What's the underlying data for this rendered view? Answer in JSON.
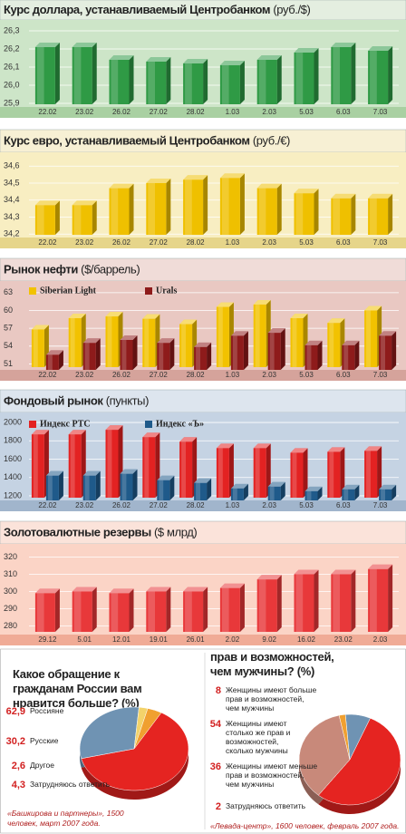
{
  "chart_data": [
    {
      "type": "bar",
      "title": "Курс доллара, устанавливаемый Центробанком",
      "unit": "(руб./$)",
      "categories": [
        "22.02",
        "23.02",
        "26.02",
        "27.02",
        "28.02",
        "1.03",
        "2.03",
        "5.03",
        "6.03",
        "7.03"
      ],
      "values": [
        26.21,
        26.21,
        26.14,
        26.13,
        26.12,
        26.11,
        26.14,
        26.18,
        26.21,
        26.19
      ],
      "color": "#2f9a45",
      "ylim": [
        25.88,
        26.33
      ],
      "yticks": [
        {
          "value": 25.9,
          "label": "25,9"
        },
        {
          "value": 26.0,
          "label": "26,0"
        },
        {
          "value": 26.1,
          "label": "26,1"
        },
        {
          "value": 26.2,
          "label": "26,2"
        },
        {
          "value": 26.3,
          "label": "26,3"
        }
      ],
      "grid": true
    },
    {
      "type": "bar",
      "title": "Курс евро, устанавливаемый Центробанком",
      "unit": "(руб./€)",
      "categories": [
        "22.02",
        "23.02",
        "26.02",
        "27.02",
        "28.02",
        "1.03",
        "2.03",
        "5.03",
        "6.03",
        "7.03"
      ],
      "values": [
        34.37,
        34.37,
        34.47,
        34.5,
        34.52,
        34.53,
        34.47,
        34.44,
        34.41,
        34.41
      ],
      "color": "#efc000",
      "ylim": [
        34.18,
        34.66
      ],
      "yticks": [
        {
          "value": 34.2,
          "label": "34,2"
        },
        {
          "value": 34.3,
          "label": "34,3"
        },
        {
          "value": 34.4,
          "label": "34,4"
        },
        {
          "value": 34.5,
          "label": "34,5"
        },
        {
          "value": 34.6,
          "label": "34,6"
        }
      ],
      "grid": true
    },
    {
      "type": "bar",
      "title": "Рынок нефти",
      "unit": "($/баррель)",
      "categories": [
        "22.02",
        "23.02",
        "26.02",
        "27.02",
        "28.02",
        "1.03",
        "2.03",
        "5.03",
        "6.03",
        "7.03"
      ],
      "series": [
        {
          "name": "Siberian Light",
          "color": "#f2c200",
          "values": [
            56.8,
            58.7,
            59.0,
            58.6,
            57.7,
            60.6,
            61.0,
            58.7,
            57.9,
            60.0
          ]
        },
        {
          "name": "Urals",
          "color": "#8e1b1b",
          "values": [
            53.0,
            55.0,
            55.5,
            55.0,
            54.3,
            56.2,
            56.7,
            54.6,
            54.6,
            56.2
          ]
        }
      ],
      "ylim": [
        50,
        64.2
      ],
      "yticks": [
        51,
        54,
        57,
        60,
        63
      ],
      "grid": true
    },
    {
      "type": "bar",
      "title": "Фондовый рынок",
      "unit": "(пункты)",
      "categories": [
        "22.02",
        "23.02",
        "26.02",
        "27.02",
        "28.02",
        "1.03",
        "2.03",
        "5.03",
        "6.03",
        "7.03"
      ],
      "series": [
        {
          "name": "Индекс РТС",
          "color": "#e32222",
          "values": [
            1870,
            1870,
            1920,
            1840,
            1790,
            1720,
            1720,
            1670,
            1680,
            1690
          ]
        },
        {
          "name": "Индекс «Ъ»",
          "color": "#1f5a8a",
          "values": [
            1450,
            1450,
            1470,
            1400,
            1370,
            1310,
            1330,
            1280,
            1300,
            1300
          ]
        }
      ],
      "ylim": [
        1150,
        2040
      ],
      "yticks": [
        1200,
        1400,
        1600,
        1800,
        2000
      ],
      "grid": true
    },
    {
      "type": "bar",
      "title": "Золотовалютные резервы",
      "unit": "($ млрд)",
      "categories": [
        "29.12",
        "5.01",
        "12.01",
        "19.01",
        "26.01",
        "2.02",
        "9.02",
        "16.02",
        "23.02",
        "2.03"
      ],
      "values": [
        299,
        300,
        299,
        300,
        300,
        302,
        307,
        310,
        310,
        313
      ],
      "color": "#e8383a",
      "ylim": [
        275,
        325
      ],
      "yticks": [
        280,
        290,
        300,
        310,
        320
      ],
      "grid": true
    },
    {
      "type": "pie",
      "title": "Какое обращение к гражданам России вам нравится больше? (%)",
      "categories": [
        "Россияне",
        "Русские",
        "Другое",
        "Затрудняюсь ответить"
      ],
      "values": [
        62.9,
        30.2,
        2.6,
        4.3
      ],
      "value_labels": [
        "62,9",
        "30,2",
        "2,6",
        "4,3"
      ],
      "colors": [
        "#e52421",
        "#6f93b3",
        "#f3d36a",
        "#f0a030"
      ],
      "source": "«Башкирова и партнеры», 1500 человек, март 2007 года."
    },
    {
      "type": "pie",
      "title": "прав и возможностей, чем мужчины? (%)",
      "categories": [
        "Женщины имеют больше прав и возможностей, чем мужчины",
        "Женщины имеют столько же прав и возможностей, сколько мужчины",
        "Женщины имеют меньше прав и возможностей, чем мужчины",
        "Затрудняюсь ответить"
      ],
      "values": [
        8,
        54,
        36,
        2
      ],
      "colors": [
        "#6f93b3",
        "#e52421",
        "#c8897a",
        "#f0a030"
      ],
      "source": "«Левада-центр», 1600 человек, февраль 2007 года."
    }
  ]
}
